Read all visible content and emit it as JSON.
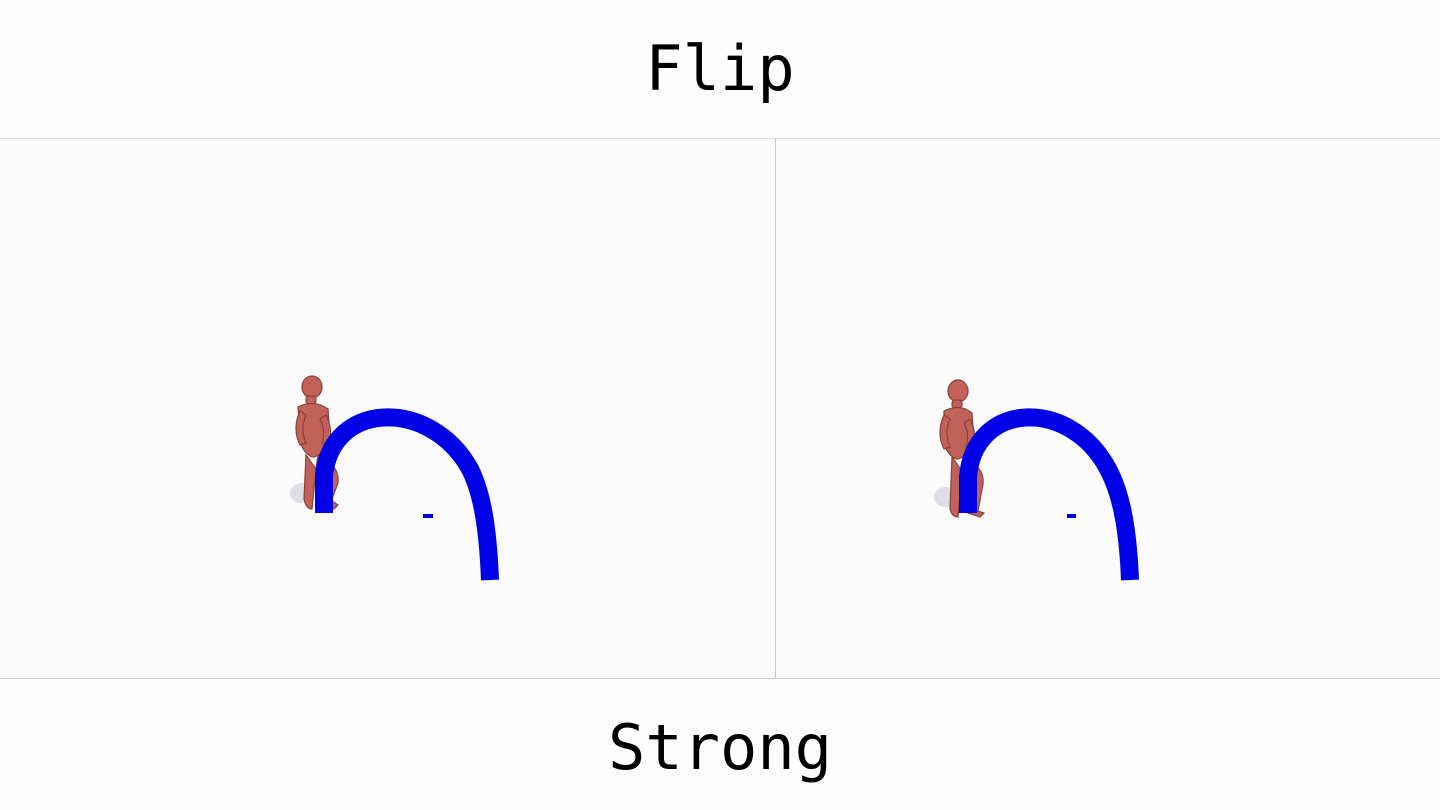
{
  "header": {
    "title": "Flip"
  },
  "footer": {
    "label": "Strong"
  },
  "colors": {
    "background": "#fdfdfd",
    "floor": "#f9fafb",
    "path": "#0000e6",
    "character": "#c0625a",
    "character_shadow": "#8e3f3a"
  },
  "panels": [
    {
      "name": "left-panel",
      "scene": "character-with-arc-path"
    },
    {
      "name": "right-panel",
      "scene": "character-with-arc-path"
    }
  ]
}
